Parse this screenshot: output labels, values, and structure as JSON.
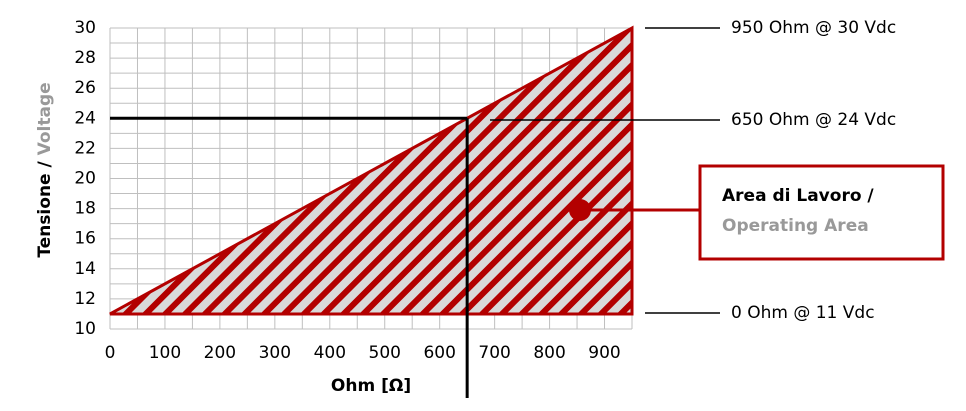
{
  "chart_data": {
    "type": "area",
    "x": [
      0,
      950,
      950
    ],
    "values": [
      11,
      30,
      11
    ],
    "color": "#b30000",
    "fill": "#d9d9d9",
    "xlim": [
      0,
      950
    ],
    "ylim": [
      10,
      30
    ],
    "xticks": [
      0,
      100,
      200,
      300,
      400,
      500,
      600,
      700,
      800,
      900
    ],
    "yticks": [
      10,
      12,
      14,
      16,
      18,
      20,
      22,
      24,
      26,
      28,
      30
    ],
    "xgrid": [
      0,
      50,
      100,
      150,
      200,
      250,
      300,
      350,
      400,
      450,
      500,
      550,
      600,
      650,
      700,
      750,
      800,
      850,
      900,
      950
    ],
    "ygrid": [
      10,
      11,
      12,
      13,
      14,
      15,
      16,
      17,
      18,
      19,
      20,
      21,
      22,
      23,
      24,
      25,
      26,
      27,
      28,
      29,
      30
    ],
    "xlabel": "Ohm [Ω]",
    "ylabel": [
      "Tensione / ",
      "Voltage"
    ],
    "reference": {
      "x": 650,
      "y": 24
    },
    "annotations": [
      "950 Ohm @ 30 Vdc",
      "650 Ohm @ 24 Vdc",
      "0 Ohm @ 11 Vdc"
    ],
    "area_label": [
      "Area di Lavoro /",
      "Operating Area"
    ]
  }
}
